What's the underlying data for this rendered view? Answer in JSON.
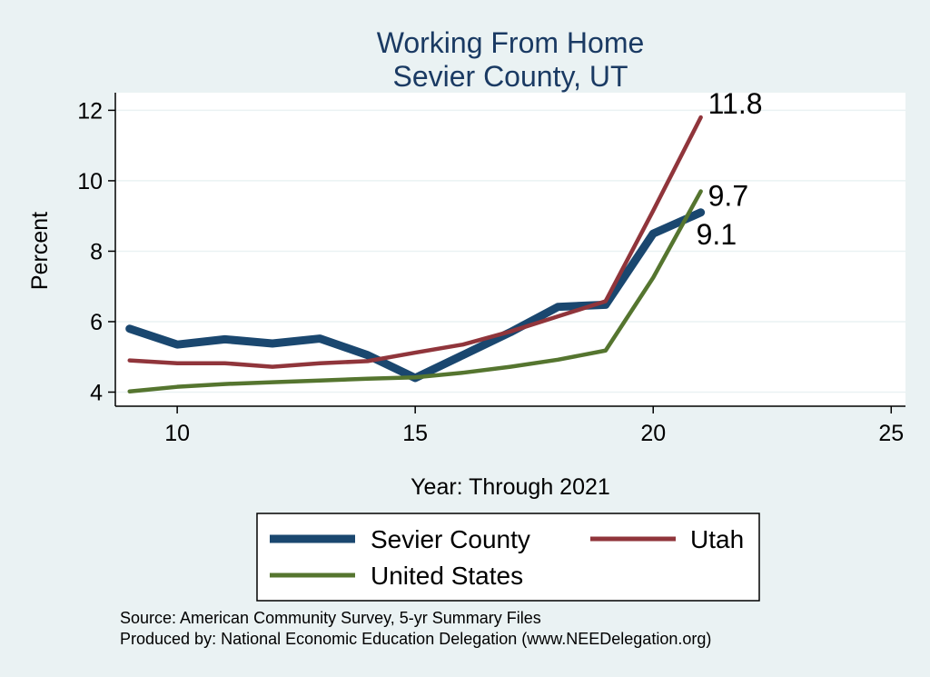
{
  "chart_data": {
    "type": "line",
    "title": [
      "Working From Home",
      "Sevier County, UT"
    ],
    "xlabel": "Year: Through 2021",
    "ylabel": "Percent",
    "xlim": [
      8.7,
      25.3
    ],
    "ylim": [
      3.6,
      12.5
    ],
    "xticks": [
      10,
      15,
      20,
      25
    ],
    "yticks": [
      4,
      6,
      8,
      10,
      12
    ],
    "grid": true,
    "legend_position": "bottom",
    "x": [
      9,
      10,
      11,
      12,
      13,
      14,
      15,
      16,
      17,
      18,
      19,
      20,
      21
    ],
    "series": [
      {
        "name": "Sevier County",
        "color": "#1a476f",
        "values": [
          5.8,
          5.35,
          5.5,
          5.38,
          5.52,
          5.05,
          4.4,
          5.05,
          5.7,
          6.42,
          6.48,
          8.5,
          9.1
        ],
        "end_label": "9.1"
      },
      {
        "name": "Utah",
        "color": "#90353b",
        "values": [
          4.9,
          4.82,
          4.82,
          4.72,
          4.82,
          4.88,
          5.12,
          5.35,
          5.72,
          6.15,
          6.58,
          9.15,
          11.8
        ],
        "end_label": "11.8"
      },
      {
        "name": "United States",
        "color": "#55752f",
        "values": [
          4.02,
          4.15,
          4.23,
          4.28,
          4.33,
          4.38,
          4.42,
          4.55,
          4.72,
          4.92,
          5.18,
          7.25,
          9.7
        ],
        "end_label": "9.7"
      }
    ],
    "notes": [
      "Source: American Community Survey, 5-yr Summary Files",
      "Produced by: National Economic Education Delegation (www.NEEDelegation.org)"
    ]
  }
}
